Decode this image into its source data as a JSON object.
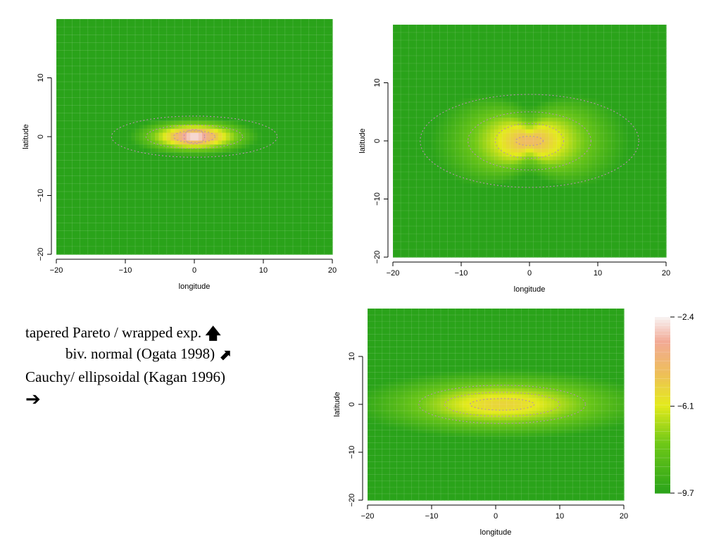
{
  "colors": {
    "low": "#2aa31a",
    "mid_low": "#7fd01a",
    "mid": "#e6ea1c",
    "high": "#f0b070",
    "peak": "#f6ecec",
    "contour": "#b890b0"
  },
  "captions": {
    "line1": "tapered Pareto / wrapped exp.",
    "line1_arrow_icon": "arrow-up-icon",
    "line2": "biv. normal (Ogata 1998)",
    "line2_arrow_icon": "arrow-up-right-icon",
    "line3": "Cauchy/ ellipsoidal (Kagan 1996)",
    "line4_arrow_icon": "arrow-right-icon"
  },
  "chart_data": [
    {
      "type": "heatmap",
      "id": "tapered-pareto",
      "xlabel": "longitude",
      "ylabel": "latitude",
      "xlim": [
        -20,
        20
      ],
      "ylim": [
        -20,
        20
      ],
      "xticks": [
        "−20",
        "−10",
        "0",
        "10",
        "20"
      ],
      "yticks": [
        "−20",
        "−10",
        "0",
        "10"
      ],
      "yticks_values": [
        -20,
        -10,
        0,
        10
      ],
      "xticks_values": [
        -20,
        -10,
        0,
        10,
        20
      ],
      "grid": true,
      "model": "tapered-pareto",
      "value_range": [
        -9.7,
        -2.4
      ]
    },
    {
      "type": "heatmap",
      "id": "bivariate-normal",
      "xlabel": "longitude",
      "ylabel": "latitude",
      "xlim": [
        -20,
        20
      ],
      "ylim": [
        -20,
        20
      ],
      "xticks": [
        "−20",
        "−10",
        "0",
        "10",
        "20"
      ],
      "yticks": [
        "−20",
        "−10",
        "0",
        "10"
      ],
      "yticks_values": [
        -20,
        -10,
        0,
        10
      ],
      "xticks_values": [
        -20,
        -10,
        0,
        10,
        20
      ],
      "grid": true,
      "model": "bivariate-normal",
      "value_range": [
        -9.7,
        -2.4
      ]
    },
    {
      "type": "heatmap",
      "id": "cauchy-ellipsoidal",
      "xlabel": "longitude",
      "ylabel": "latitude",
      "xlim": [
        -20,
        20
      ],
      "ylim": [
        -20,
        20
      ],
      "xticks": [
        "−20",
        "−10",
        "0",
        "10",
        "20"
      ],
      "yticks": [
        "−20",
        "−10",
        "0",
        "10"
      ],
      "yticks_values": [
        -20,
        -10,
        0,
        10
      ],
      "xticks_values": [
        -20,
        -10,
        0,
        10,
        20
      ],
      "grid": true,
      "model": "cauchy-ellipsoidal",
      "value_range": [
        -9.7,
        -2.4
      ]
    }
  ],
  "colorbar": {
    "labels": [
      "−2.4",
      "−6.1",
      "−9.7"
    ],
    "values": [
      -2.4,
      -6.1,
      -9.7
    ],
    "range": [
      -9.7,
      -2.4
    ]
  }
}
